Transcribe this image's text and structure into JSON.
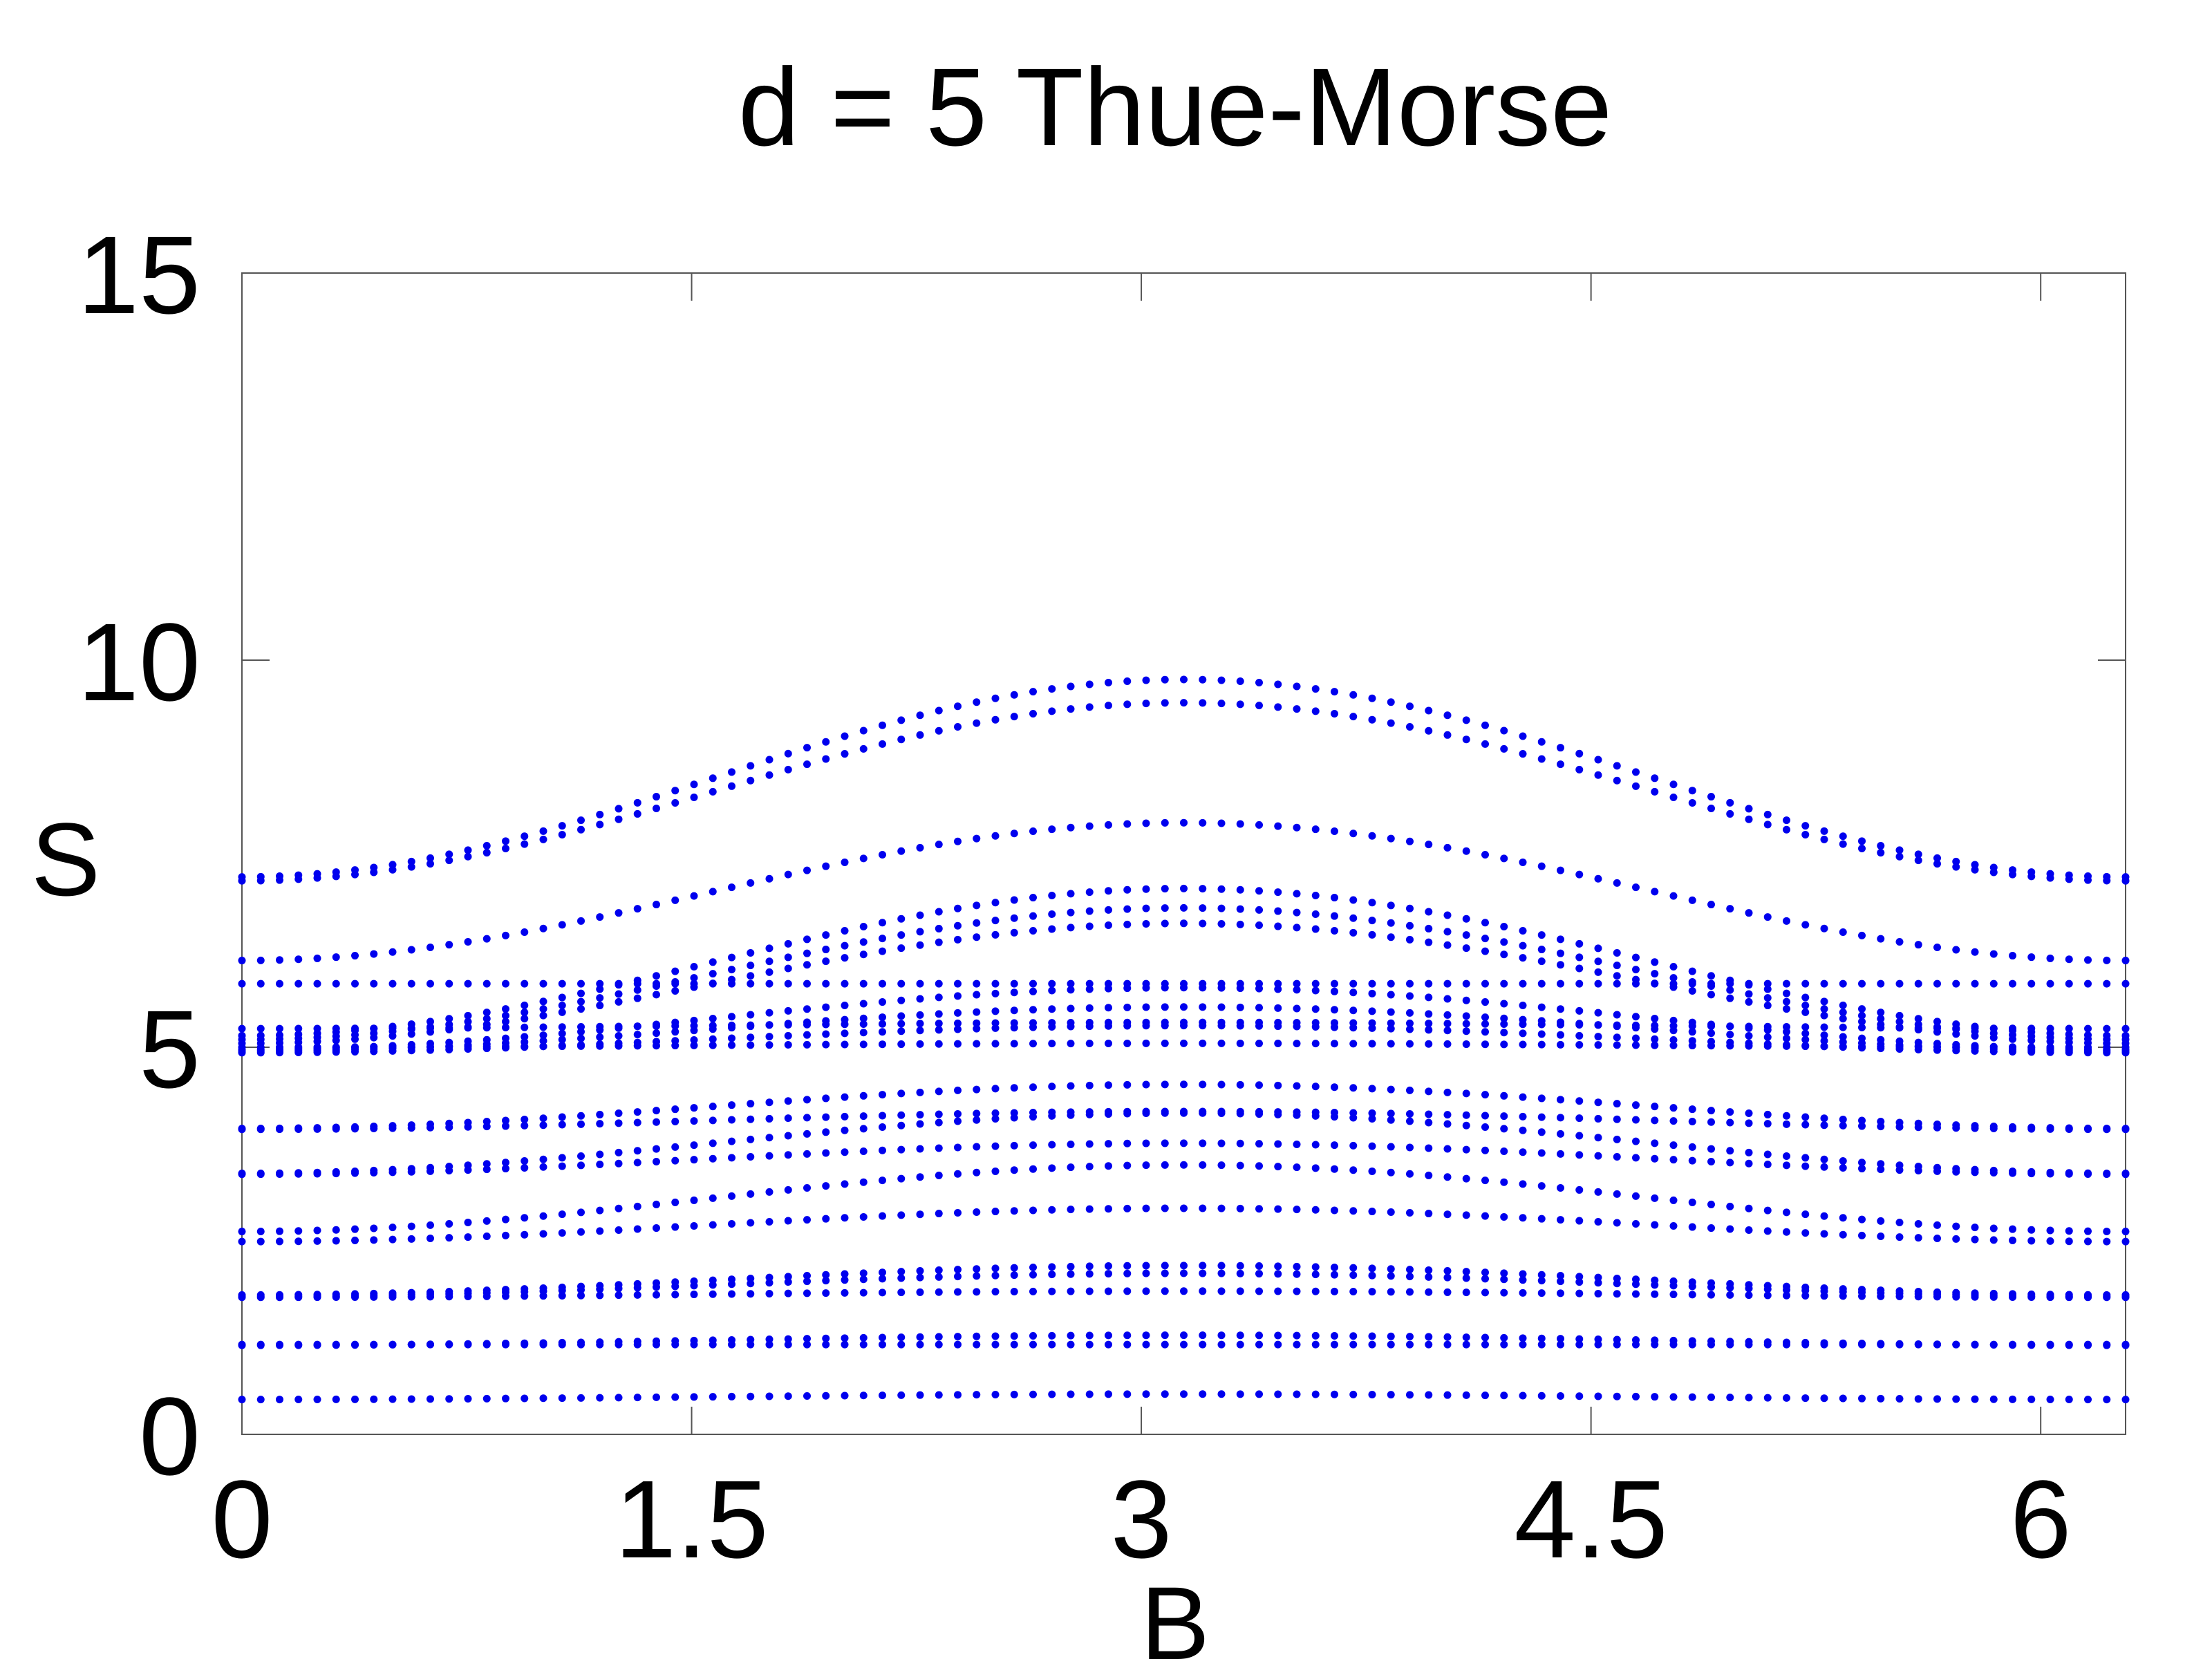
{
  "chart_data": {
    "type": "scatter",
    "title": "d = 5 Thue-Morse",
    "xlabel": "B",
    "ylabel": "S",
    "xlim": [
      0,
      6.2832
    ],
    "ylim": [
      0,
      15
    ],
    "xticks": [
      0,
      1.5,
      3,
      4.5,
      6
    ],
    "xtick_labels": [
      "0",
      "1.5",
      "3",
      "4.5",
      "6"
    ],
    "yticks": [
      0,
      5,
      10,
      15
    ],
    "ytick_labels": [
      "0",
      "5",
      "10",
      "15"
    ],
    "grid": false,
    "legend": "none",
    "marker_color": "#0000ee",
    "x_samples": 100,
    "note_shape": "each band y(B) = base + amp * (1 - cos B) / 2",
    "series": [
      {
        "base": 0.45,
        "amp": 0.07
      },
      {
        "base": 1.15,
        "amp": 0.13
      },
      {
        "base": 1.16,
        "amp": 0.0
      },
      {
        "base": 1.77,
        "amp": 0.08
      },
      {
        "base": 1.78,
        "amp": 0.3
      },
      {
        "base": 1.8,
        "amp": 0.38
      },
      {
        "base": 2.49,
        "amp": 0.43
      },
      {
        "base": 2.62,
        "amp": 0.86
      },
      {
        "base": 3.36,
        "amp": 0.4
      },
      {
        "base": 3.37,
        "amp": 0.78
      },
      {
        "base": 3.94,
        "amp": 0.23
      },
      {
        "base": 3.95,
        "amp": 0.57
      },
      {
        "base": 4.93,
        "amp": 0.35
      },
      {
        "base": 4.95,
        "amp": 0.57
      },
      {
        "base": 4.97,
        "amp": 0.8
      },
      {
        "base": 5.0,
        "amp": 0.05
      },
      {
        "base": 5.24,
        "amp": 0.08
      },
      {
        "base": 5.05,
        "amp": 1.55
      },
      {
        "base": 5.1,
        "amp": 1.7
      },
      {
        "base": 5.15,
        "amp": 1.9
      },
      {
        "base": 5.82,
        "amp": 0.0
      },
      {
        "base": 6.12,
        "amp": 1.78
      },
      {
        "base": 7.15,
        "amp": 2.3
      },
      {
        "base": 7.2,
        "amp": 2.55
      }
    ]
  }
}
